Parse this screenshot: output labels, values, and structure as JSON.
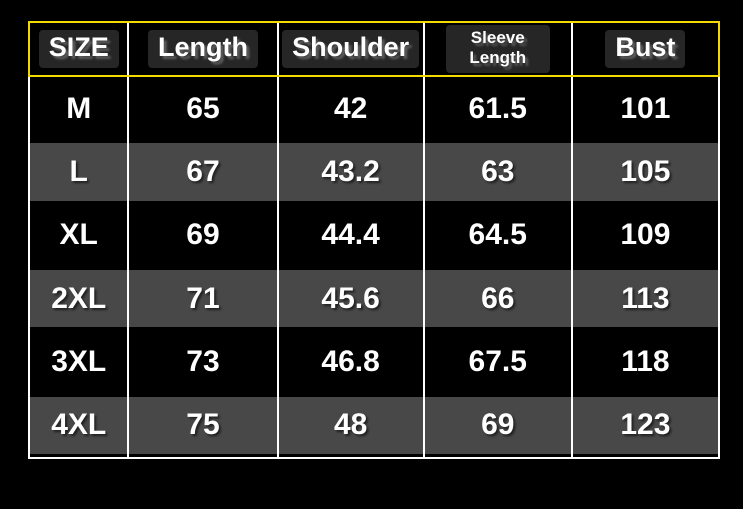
{
  "chart_data": {
    "type": "table",
    "columns": [
      "SIZE",
      "Length",
      "Shoulder",
      "Sleeve Length",
      "Bust"
    ],
    "rows": [
      {
        "size": "M",
        "values": [
          "65",
          "42",
          "61.5",
          "101"
        ]
      },
      {
        "size": "L",
        "values": [
          "67",
          "43.2",
          "63",
          "105"
        ]
      },
      {
        "size": "XL",
        "values": [
          "69",
          "44.4",
          "64.5",
          "109"
        ]
      },
      {
        "size": "2XL",
        "values": [
          "71",
          "45.6",
          "66",
          "113"
        ]
      },
      {
        "size": "3XL",
        "values": [
          "73",
          "46.8",
          "67.5",
          "118"
        ]
      },
      {
        "size": "4XL",
        "values": [
          "75",
          "48",
          "69",
          "123"
        ]
      }
    ],
    "layout": {
      "header_border": "yellow outline around header row",
      "grid_lines": "white vertical separators and white outer body border",
      "row_striping": "black / dark-gray alternating"
    }
  },
  "colors": {
    "background": "#000000",
    "header_border_accent": "#f2d900",
    "grid_line": "#ffffff",
    "row_alternate": "#484848",
    "header_chip_background": "#262626",
    "text": "#ffffff"
  }
}
